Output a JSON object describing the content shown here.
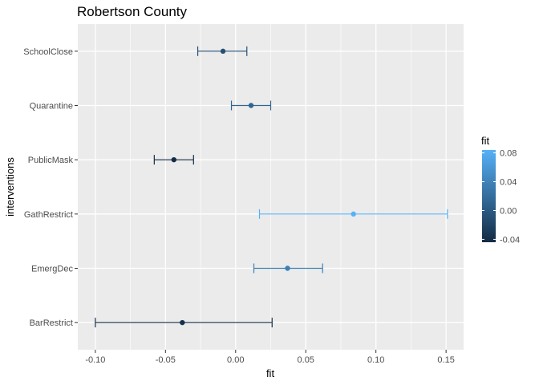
{
  "chart_data": {
    "type": "scatter",
    "title": "Robertson County",
    "xlabel": "fit",
    "ylabel": "interventions",
    "xlim": [
      -0.1125,
      0.1625
    ],
    "x_ticks": [
      -0.1,
      -0.05,
      0.0,
      0.05,
      0.1,
      0.15
    ],
    "x_tick_labels": [
      "-0.10",
      "-0.05",
      "0.00",
      "0.05",
      "0.10",
      "0.15"
    ],
    "categories": [
      "BarRestrict",
      "EmergDec",
      "GathRestrict",
      "PublicMask",
      "Quarantine",
      "SchoolClose"
    ],
    "points": [
      {
        "intervention": "BarRestrict",
        "fit": -0.038,
        "lower": -0.1,
        "upper": 0.026
      },
      {
        "intervention": "EmergDec",
        "fit": 0.037,
        "lower": 0.013,
        "upper": 0.062
      },
      {
        "intervention": "GathRestrict",
        "fit": 0.084,
        "lower": 0.017,
        "upper": 0.151
      },
      {
        "intervention": "PublicMask",
        "fit": -0.044,
        "lower": -0.058,
        "upper": -0.03
      },
      {
        "intervention": "Quarantine",
        "fit": 0.011,
        "lower": -0.003,
        "upper": 0.025
      },
      {
        "intervention": "SchoolClose",
        "fit": -0.009,
        "lower": -0.027,
        "upper": 0.008
      }
    ],
    "legend": {
      "title": "fit",
      "placement": "right",
      "range": [
        -0.044,
        0.084
      ],
      "ticks": [
        -0.04,
        0.0,
        0.04,
        0.08
      ],
      "tick_labels": [
        "-0.04",
        "0.00",
        "0.04",
        "0.08"
      ],
      "color_low": "#132B43",
      "color_high": "#56B1F7"
    },
    "grid": true,
    "panel_background": "#ebebeb",
    "grid_color": "#ffffff"
  }
}
